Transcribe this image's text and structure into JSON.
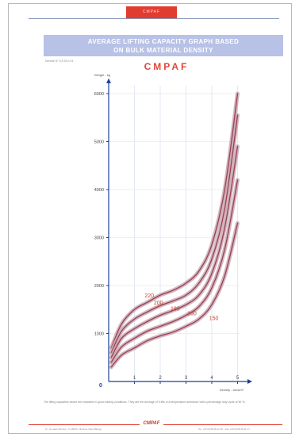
{
  "header": {
    "tab_text": "CMPAF",
    "title_line1": "AVERAGE LIFTING CAPACITY GRAPH BASED",
    "title_line2": "ON BULK MATERIAL DENSITY",
    "ref_text": "Densité N° 5 A S10-V4",
    "brand": "CMPAF"
  },
  "footer": {
    "note": "The lifting capacities above are indicated in good holding conditions. They are the average of 5 lifts in a temperature ambiance with a percentage duty cycle of 50 %.",
    "logo_text": "CMPAF",
    "address_left": "Z.I. de Jean Monnet - F-45000 - Bonnes Vaux-Blangy",
    "address_right": "Tel. +33 (0)38.46.41.00 - Fax +33 (0)38.46.41.17"
  },
  "colors": {
    "accent_red": "#e23b2f",
    "title_band": "#b8c2e6",
    "curve": "#9a4050",
    "curve_halo": "#c9a9b5",
    "axis": "#1f3f96"
  },
  "chart_data": {
    "type": "line",
    "title": "",
    "ylabel": "Weight - kg",
    "xlabel": "Density - tons/m³",
    "xlim": [
      0,
      5.2
    ],
    "ylim": [
      0,
      6300
    ],
    "x_ticks": [
      1,
      2,
      3,
      4,
      5
    ],
    "y_ticks": [
      1000,
      2000,
      3000,
      4000,
      5000,
      6000
    ],
    "origin_label": "0",
    "grid": true,
    "legend": "inline labels on curves",
    "series": [
      {
        "name": "220",
        "label_at": [
          1.4,
          1750
        ],
        "x": [
          0.1,
          0.5,
          1,
          1.5,
          2,
          2.5,
          3,
          3.5,
          4,
          4.5,
          5
        ],
        "values": [
          700,
          1200,
          1500,
          1650,
          1800,
          1900,
          2050,
          2300,
          2850,
          4000,
          6000
        ]
      },
      {
        "name": "200",
        "label_at": [
          1.75,
          1600
        ],
        "x": [
          0.1,
          0.5,
          1,
          1.5,
          2,
          2.5,
          3,
          3.5,
          4,
          4.5,
          5
        ],
        "values": [
          600,
          1050,
          1300,
          1450,
          1580,
          1680,
          1800,
          2050,
          2550,
          3600,
          5550
        ]
      },
      {
        "name": "180",
        "label_at": [
          2.4,
          1480
        ],
        "x": [
          0.1,
          0.5,
          1,
          1.5,
          2,
          2.5,
          3,
          3.5,
          4,
          4.5,
          5
        ],
        "values": [
          500,
          900,
          1100,
          1250,
          1380,
          1480,
          1600,
          1800,
          2250,
          3200,
          4900
        ]
      },
      {
        "name": "160",
        "label_at": [
          3.05,
          1380
        ],
        "x": [
          0.1,
          0.5,
          1,
          1.5,
          2,
          2.5,
          3,
          3.5,
          4,
          4.5,
          5
        ],
        "values": [
          400,
          720,
          900,
          1050,
          1150,
          1250,
          1380,
          1560,
          1950,
          2750,
          4200
        ]
      },
      {
        "name": "150",
        "label_at": [
          3.9,
          1280
        ],
        "x": [
          0.1,
          0.5,
          1,
          1.5,
          2,
          2.5,
          3,
          3.5,
          4,
          4.5,
          5
        ],
        "values": [
          300,
          550,
          700,
          850,
          950,
          1030,
          1150,
          1300,
          1600,
          2200,
          3300
        ]
      }
    ]
  }
}
